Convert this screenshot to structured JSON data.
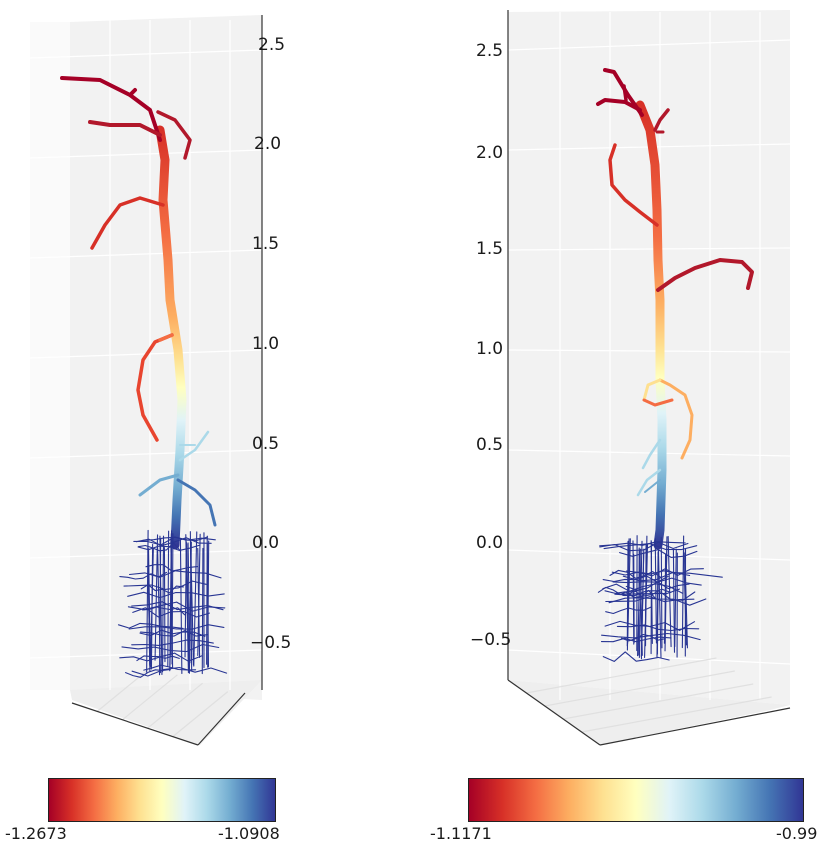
{
  "panels": [
    {
      "z_ticks": [
        "2.5",
        "2.0",
        "1.5",
        "1.0",
        "0.5",
        "0.0",
        "−0.5"
      ],
      "colorbar": {
        "min_label": "-1.2673",
        "max_label": "-1.0908"
      }
    },
    {
      "z_ticks": [
        "2.5",
        "2.0",
        "1.5",
        "1.0",
        "0.5",
        "0.0",
        "−0.5"
      ],
      "colorbar": {
        "min_label": "-1.1171",
        "max_label": "-0.99"
      }
    }
  ],
  "colormap": [
    "#a50026",
    "#d73027",
    "#f46d43",
    "#fdae61",
    "#fee090",
    "#ffffbf",
    "#e0f3f8",
    "#abd9e9",
    "#74add1",
    "#4575b4",
    "#313695"
  ]
}
